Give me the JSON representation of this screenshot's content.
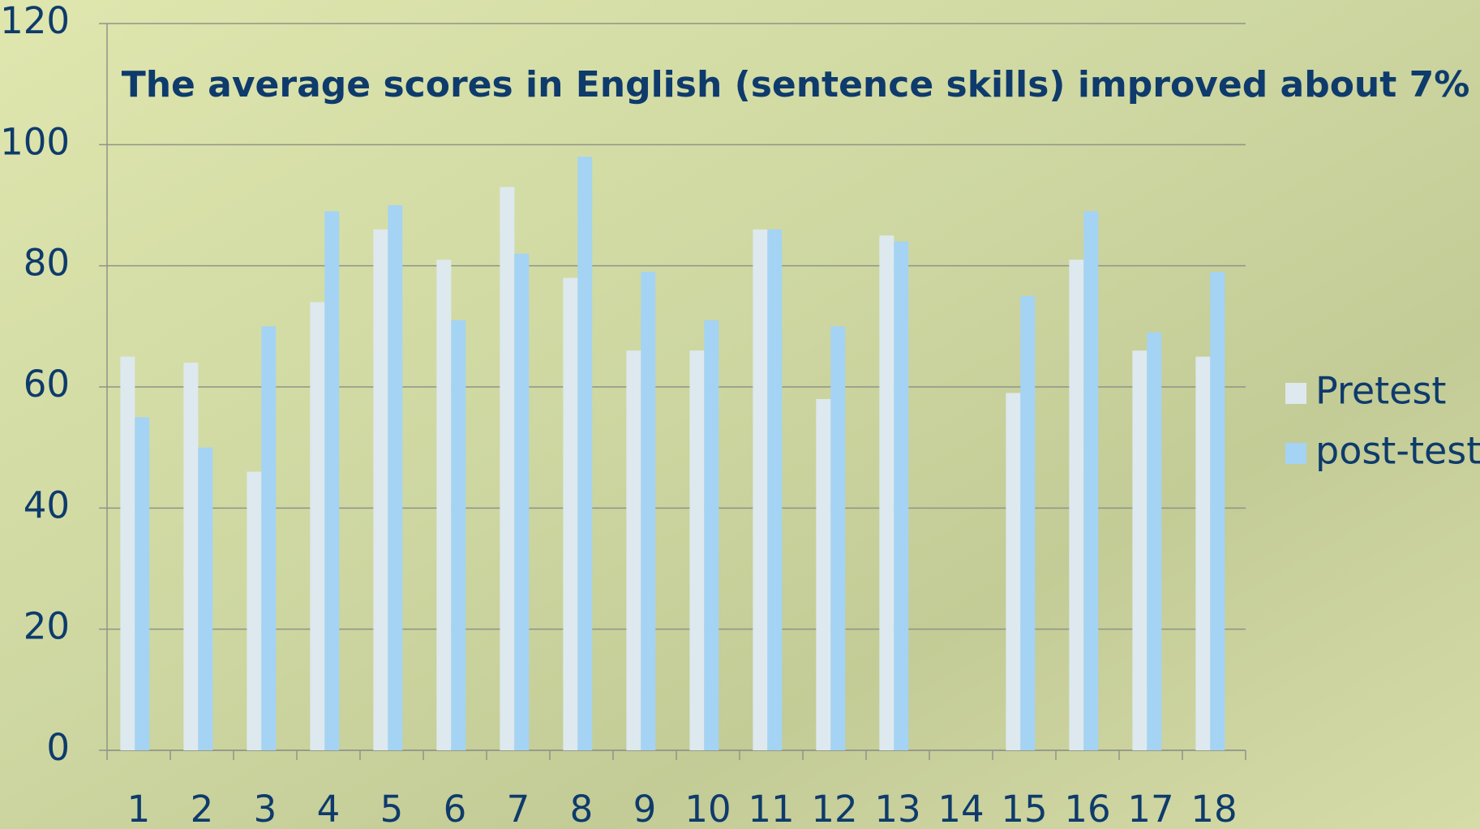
{
  "chart_data": {
    "type": "bar",
    "title": "The average scores in English (sentence skills) improved about 7%",
    "categories": [
      "1",
      "2",
      "3",
      "4",
      "5",
      "6",
      "7",
      "8",
      "9",
      "10",
      "11",
      "12",
      "13",
      "14",
      "15",
      "16",
      "17",
      "18"
    ],
    "series": [
      {
        "name": "Pretest",
        "color": "#dde9ef",
        "values": [
          65,
          64,
          46,
          74,
          86,
          81,
          93,
          78,
          66,
          66,
          86,
          58,
          85,
          null,
          59,
          81,
          66,
          65
        ]
      },
      {
        "name": "post-test",
        "color": "#a4d3f4",
        "values": [
          55,
          50,
          70,
          89,
          90,
          71,
          82,
          98,
          79,
          71,
          86,
          70,
          84,
          null,
          75,
          89,
          69,
          79
        ]
      }
    ],
    "ylim": [
      0,
      120
    ],
    "yticks": [
      0,
      20,
      40,
      60,
      80,
      100,
      120
    ],
    "grid": true,
    "legend": "right"
  }
}
